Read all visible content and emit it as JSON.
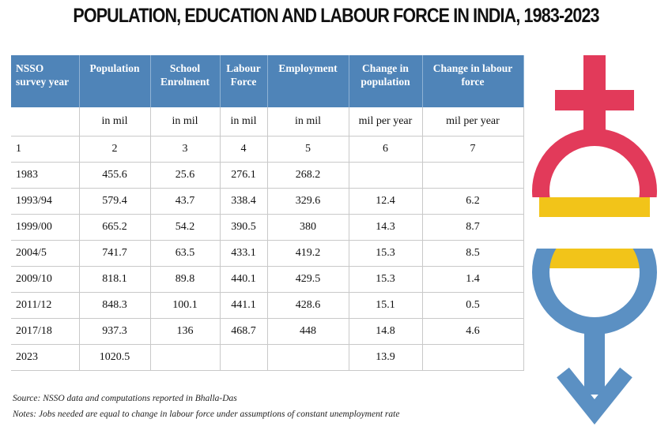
{
  "title": "POPULATION, EDUCATION AND LABOUR FORCE IN INDIA, 1983-2023",
  "columns": [
    "NSSO survey year",
    "Population",
    "School Enrolment",
    "Labour Force",
    "Employment",
    "Change in population",
    "Change in labour force"
  ],
  "units": [
    "",
    "in mil",
    "in mil",
    "in mil",
    "in mil",
    "mil per year",
    "mil per year"
  ],
  "column_numbers": [
    "1",
    "2",
    "3",
    "4",
    "5",
    "6",
    "7"
  ],
  "rows": [
    [
      "1983",
      "455.6",
      "25.6",
      "276.1",
      "268.2",
      "",
      ""
    ],
    [
      "1993/94",
      "579.4",
      "43.7",
      "338.4",
      "329.6",
      "12.4",
      "6.2"
    ],
    [
      "1999/00",
      "665.2",
      "54.2",
      "390.5",
      "380",
      "14.3",
      "8.7"
    ],
    [
      "2004/5",
      "741.7",
      "63.5",
      "433.1",
      "419.2",
      "15.3",
      "8.5"
    ],
    [
      "2009/10",
      "818.1",
      "89.8",
      "440.1",
      "429.5",
      "15.3",
      "1.4"
    ],
    [
      "2011/12",
      "848.3",
      "100.1",
      "441.1",
      "428.6",
      "15.1",
      "0.5"
    ],
    [
      "2017/18",
      "937.3",
      "136",
      "468.7",
      "448",
      "14.8",
      "4.6"
    ],
    [
      "2023",
      "1020.5",
      "",
      "",
      "",
      "13.9",
      ""
    ]
  ],
  "source": "Source: NSSO data and computations reported in Bhalla-Das",
  "notes": "Notes: Jobs needed are equal to change in labour force under assumptions of constant unemployment rate",
  "icon": "gender-symbols-icon",
  "colors": {
    "header": "#4f84b8",
    "female": "#e23a5a",
    "male": "#5b90c3",
    "overlap": "#f2c419"
  }
}
